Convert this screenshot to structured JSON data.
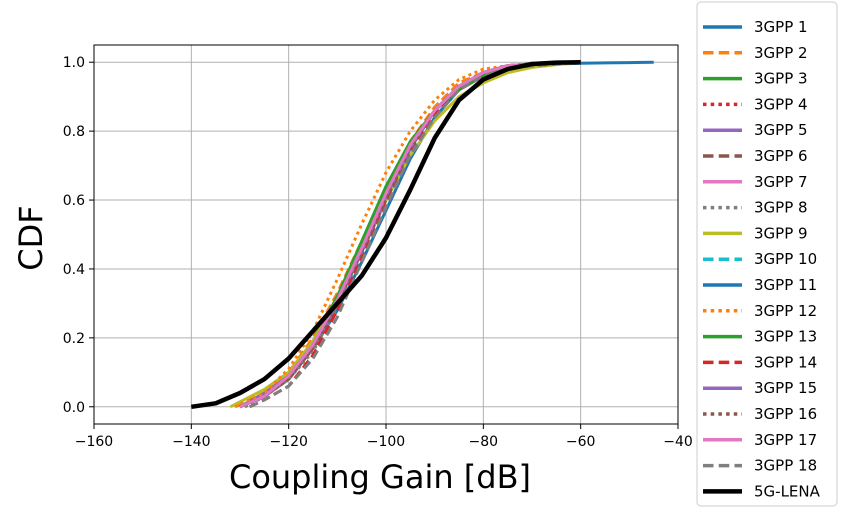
{
  "chart_data": {
    "type": "line",
    "title": "",
    "xlabel": "Coupling Gain [dB]",
    "ylabel": "CDF",
    "xlim": [
      -160,
      -40
    ],
    "ylim": [
      -0.05,
      1.05
    ],
    "xticks": [
      -160,
      -140,
      -120,
      -100,
      -80,
      -60,
      -40
    ],
    "xtick_labels": [
      "−160",
      "−140",
      "−120",
      "−100",
      "−80",
      "−60",
      "−40"
    ],
    "yticks": [
      0.0,
      0.2,
      0.4,
      0.6,
      0.8,
      1.0
    ],
    "ytick_labels": [
      "0.0",
      "0.2",
      "0.4",
      "0.6",
      "0.8",
      "1.0"
    ],
    "grid": true,
    "legend_position": "outside-right",
    "series": [
      {
        "name": "3GPP 1",
        "color": "#1f77b4",
        "dash": "solid",
        "x": [
          -130,
          -125,
          -120,
          -115,
          -110,
          -105,
          -100,
          -95,
          -90,
          -85,
          -80,
          -75,
          -70,
          -65,
          -60,
          -55,
          -50,
          -45
        ],
        "y": [
          0.0,
          0.03,
          0.08,
          0.17,
          0.28,
          0.42,
          0.57,
          0.72,
          0.84,
          0.92,
          0.96,
          0.98,
          0.99,
          0.995,
          0.997,
          0.998,
          0.999,
          1.0
        ]
      },
      {
        "name": "3GPP 2",
        "color": "#ff7f0e",
        "dash": "dashed",
        "x": [
          -131,
          -125,
          -120,
          -115,
          -110,
          -105,
          -100,
          -95,
          -90,
          -85,
          -80,
          -75,
          -70,
          -65,
          -60
        ],
        "y": [
          0.0,
          0.04,
          0.1,
          0.2,
          0.33,
          0.48,
          0.63,
          0.77,
          0.87,
          0.94,
          0.97,
          0.99,
          0.995,
          0.998,
          1.0
        ]
      },
      {
        "name": "3GPP 3",
        "color": "#2ca02c",
        "dash": "solid",
        "x": [
          -130,
          -125,
          -120,
          -115,
          -110,
          -105,
          -100,
          -95,
          -90,
          -85,
          -80,
          -75,
          -70,
          -65,
          -60
        ],
        "y": [
          0.0,
          0.04,
          0.1,
          0.19,
          0.32,
          0.48,
          0.64,
          0.77,
          0.86,
          0.92,
          0.96,
          0.98,
          0.99,
          0.995,
          1.0
        ]
      },
      {
        "name": "3GPP 4",
        "color": "#d62728",
        "dash": "dotted",
        "x": [
          -129,
          -125,
          -120,
          -115,
          -110,
          -105,
          -100,
          -95,
          -90,
          -85,
          -80,
          -75,
          -70,
          -65,
          -60
        ],
        "y": [
          0.0,
          0.03,
          0.08,
          0.17,
          0.3,
          0.45,
          0.6,
          0.75,
          0.86,
          0.93,
          0.97,
          0.99,
          0.995,
          0.998,
          1.0
        ]
      },
      {
        "name": "3GPP 5",
        "color": "#9467bd",
        "dash": "solid",
        "x": [
          -130,
          -125,
          -120,
          -115,
          -110,
          -105,
          -100,
          -95,
          -90,
          -85,
          -80,
          -75,
          -70,
          -65,
          -60
        ],
        "y": [
          0.0,
          0.04,
          0.09,
          0.18,
          0.3,
          0.45,
          0.61,
          0.75,
          0.86,
          0.93,
          0.97,
          0.99,
          0.995,
          0.998,
          1.0
        ]
      },
      {
        "name": "3GPP 6",
        "color": "#8c564b",
        "dash": "dashed",
        "x": [
          -130,
          -125,
          -120,
          -115,
          -110,
          -105,
          -100,
          -95,
          -90,
          -85,
          -80,
          -75,
          -70,
          -65,
          -60
        ],
        "y": [
          0.0,
          0.03,
          0.08,
          0.17,
          0.3,
          0.45,
          0.6,
          0.75,
          0.86,
          0.93,
          0.97,
          0.99,
          0.995,
          0.998,
          1.0
        ]
      },
      {
        "name": "3GPP 7",
        "color": "#e377c2",
        "dash": "solid",
        "x": [
          -130,
          -125,
          -120,
          -115,
          -110,
          -105,
          -100,
          -95,
          -90,
          -85,
          -80,
          -75,
          -70,
          -65,
          -60
        ],
        "y": [
          0.0,
          0.03,
          0.09,
          0.18,
          0.31,
          0.46,
          0.61,
          0.75,
          0.86,
          0.93,
          0.97,
          0.99,
          0.995,
          0.998,
          1.0
        ]
      },
      {
        "name": "3GPP 8",
        "color": "#7f7f7f",
        "dash": "dotted",
        "x": [
          -129,
          -125,
          -120,
          -115,
          -110,
          -105,
          -100,
          -95,
          -90,
          -85,
          -80,
          -75,
          -70,
          -65,
          -60
        ],
        "y": [
          0.0,
          0.03,
          0.08,
          0.16,
          0.29,
          0.44,
          0.6,
          0.75,
          0.86,
          0.93,
          0.97,
          0.99,
          0.995,
          0.998,
          1.0
        ]
      },
      {
        "name": "3GPP 9",
        "color": "#bcbd22",
        "dash": "solid",
        "x": [
          -132,
          -125,
          -120,
          -115,
          -110,
          -105,
          -100,
          -95,
          -90,
          -85,
          -80,
          -75,
          -70,
          -65,
          -60
        ],
        "y": [
          0.0,
          0.05,
          0.1,
          0.19,
          0.31,
          0.45,
          0.6,
          0.73,
          0.83,
          0.9,
          0.94,
          0.97,
          0.985,
          0.993,
          1.0
        ]
      },
      {
        "name": "3GPP 10",
        "color": "#17becf",
        "dash": "dashed",
        "x": [
          -130,
          -125,
          -120,
          -115,
          -110,
          -105,
          -100,
          -95,
          -90,
          -85,
          -80,
          -75,
          -70,
          -65,
          -60
        ],
        "y": [
          0.0,
          0.03,
          0.09,
          0.18,
          0.3,
          0.45,
          0.61,
          0.75,
          0.86,
          0.93,
          0.97,
          0.99,
          0.995,
          0.998,
          1.0
        ]
      },
      {
        "name": "3GPP 11",
        "color": "#1f77b4",
        "dash": "solid",
        "x": [
          -130,
          -125,
          -120,
          -115,
          -110,
          -105,
          -100,
          -95,
          -90,
          -85,
          -80,
          -75,
          -70,
          -65,
          -60
        ],
        "y": [
          0.0,
          0.03,
          0.09,
          0.18,
          0.3,
          0.45,
          0.61,
          0.75,
          0.86,
          0.93,
          0.97,
          0.99,
          0.995,
          0.998,
          1.0
        ]
      },
      {
        "name": "3GPP 12",
        "color": "#ff7f0e",
        "dash": "dotted",
        "x": [
          -131,
          -125,
          -120,
          -115,
          -110,
          -105,
          -100,
          -95,
          -90,
          -85,
          -80,
          -75,
          -70,
          -65,
          -60
        ],
        "y": [
          0.0,
          0.04,
          0.11,
          0.22,
          0.37,
          0.53,
          0.68,
          0.8,
          0.89,
          0.95,
          0.98,
          0.99,
          0.995,
          0.998,
          1.0
        ]
      },
      {
        "name": "3GPP 13",
        "color": "#2ca02c",
        "dash": "solid",
        "x": [
          -130,
          -125,
          -120,
          -115,
          -110,
          -105,
          -100,
          -95,
          -90,
          -85,
          -80,
          -75,
          -70,
          -65,
          -60
        ],
        "y": [
          0.0,
          0.03,
          0.09,
          0.18,
          0.31,
          0.47,
          0.63,
          0.76,
          0.86,
          0.93,
          0.97,
          0.99,
          0.995,
          0.998,
          1.0
        ]
      },
      {
        "name": "3GPP 14",
        "color": "#d62728",
        "dash": "dashed",
        "x": [
          -128,
          -125,
          -120,
          -115,
          -110,
          -105,
          -100,
          -95,
          -90,
          -85,
          -80,
          -75,
          -70,
          -65,
          -60
        ],
        "y": [
          0.0,
          0.02,
          0.06,
          0.15,
          0.28,
          0.44,
          0.6,
          0.74,
          0.85,
          0.92,
          0.96,
          0.98,
          0.99,
          0.995,
          1.0
        ]
      },
      {
        "name": "3GPP 15",
        "color": "#9467bd",
        "dash": "solid",
        "x": [
          -130,
          -125,
          -120,
          -115,
          -110,
          -105,
          -100,
          -95,
          -90,
          -85,
          -80,
          -75,
          -70,
          -65,
          -60
        ],
        "y": [
          0.0,
          0.03,
          0.09,
          0.18,
          0.3,
          0.45,
          0.61,
          0.75,
          0.86,
          0.93,
          0.97,
          0.99,
          0.995,
          0.998,
          1.0
        ]
      },
      {
        "name": "3GPP 16",
        "color": "#8c564b",
        "dash": "dotted",
        "x": [
          -130,
          -125,
          -120,
          -115,
          -110,
          -105,
          -100,
          -95,
          -90,
          -85,
          -80,
          -75,
          -70,
          -65,
          -60
        ],
        "y": [
          0.0,
          0.03,
          0.08,
          0.17,
          0.3,
          0.45,
          0.6,
          0.75,
          0.86,
          0.93,
          0.97,
          0.99,
          0.995,
          0.998,
          1.0
        ]
      },
      {
        "name": "3GPP 17",
        "color": "#e377c2",
        "dash": "solid",
        "x": [
          -130,
          -125,
          -120,
          -115,
          -110,
          -105,
          -100,
          -95,
          -90,
          -85,
          -80,
          -75,
          -70,
          -65,
          -60
        ],
        "y": [
          0.0,
          0.03,
          0.09,
          0.18,
          0.31,
          0.46,
          0.62,
          0.76,
          0.86,
          0.93,
          0.97,
          0.99,
          0.995,
          0.998,
          1.0
        ]
      },
      {
        "name": "3GPP 18",
        "color": "#7f7f7f",
        "dash": "dashed",
        "x": [
          -128,
          -125,
          -120,
          -115,
          -110,
          -105,
          -100,
          -95,
          -90,
          -85,
          -80,
          -75,
          -70,
          -65,
          -60
        ],
        "y": [
          0.0,
          0.02,
          0.06,
          0.14,
          0.26,
          0.42,
          0.58,
          0.73,
          0.84,
          0.92,
          0.96,
          0.98,
          0.99,
          0.995,
          1.0
        ]
      },
      {
        "name": "5G-LENA",
        "color": "#000000",
        "dash": "solid",
        "x": [
          -140,
          -135,
          -130,
          -125,
          -120,
          -115,
          -110,
          -105,
          -100,
          -95,
          -90,
          -85,
          -80,
          -75,
          -70,
          -65,
          -60
        ],
        "y": [
          0.0,
          0.01,
          0.04,
          0.08,
          0.14,
          0.22,
          0.3,
          0.38,
          0.49,
          0.63,
          0.78,
          0.89,
          0.95,
          0.98,
          0.995,
          0.999,
          1.0
        ]
      }
    ]
  }
}
